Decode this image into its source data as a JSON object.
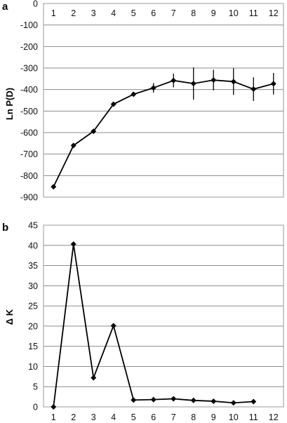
{
  "chart_data": [
    {
      "type": "line",
      "panel_label": "a",
      "ylabel": "Ln P(D)",
      "categories": [
        "1",
        "2",
        "3",
        "4",
        "5",
        "6",
        "7",
        "8",
        "9",
        "10",
        "11",
        "12"
      ],
      "x_tick_position": "top",
      "ylim": [
        -900,
        0
      ],
      "y_ticks": [
        0,
        -100,
        -200,
        -300,
        -400,
        -500,
        -600,
        -700,
        -800,
        -900
      ],
      "y_tick_labels": [
        "0",
        "-100",
        "-200",
        "-300",
        "-400",
        "-500",
        "-600",
        "-700",
        "-800",
        "-900"
      ],
      "grid": true,
      "series": [
        {
          "values": [
            -852,
            -660,
            -594,
            -468,
            -422,
            -392,
            -358,
            -372,
            -356,
            -363,
            -398,
            -373
          ],
          "error": [
            0,
            0,
            0,
            0,
            10,
            22,
            32,
            75,
            48,
            62,
            55,
            50
          ],
          "marker": "diamond",
          "color": "#000000"
        }
      ]
    },
    {
      "type": "line",
      "panel_label": "b",
      "ylabel": "Δ K",
      "categories": [
        "1",
        "2",
        "3",
        "4",
        "5",
        "6",
        "7",
        "8",
        "9",
        "10",
        "11",
        "12"
      ],
      "x_tick_position": "bottom",
      "ylim": [
        0,
        45
      ],
      "y_ticks": [
        0,
        5,
        10,
        15,
        20,
        25,
        30,
        35,
        40,
        45
      ],
      "y_tick_labels": [
        "0",
        "5",
        "10",
        "15",
        "20",
        "25",
        "30",
        "35",
        "40",
        "45"
      ],
      "grid": true,
      "series": [
        {
          "x": [
            "1",
            "2",
            "3",
            "4",
            "5",
            "6",
            "7",
            "8",
            "9",
            "10",
            "11"
          ],
          "values": [
            0,
            40.3,
            7.2,
            20.1,
            1.7,
            1.8,
            2.0,
            1.6,
            1.4,
            1.0,
            1.3
          ],
          "marker": "diamond",
          "color": "#000000"
        }
      ]
    }
  ]
}
